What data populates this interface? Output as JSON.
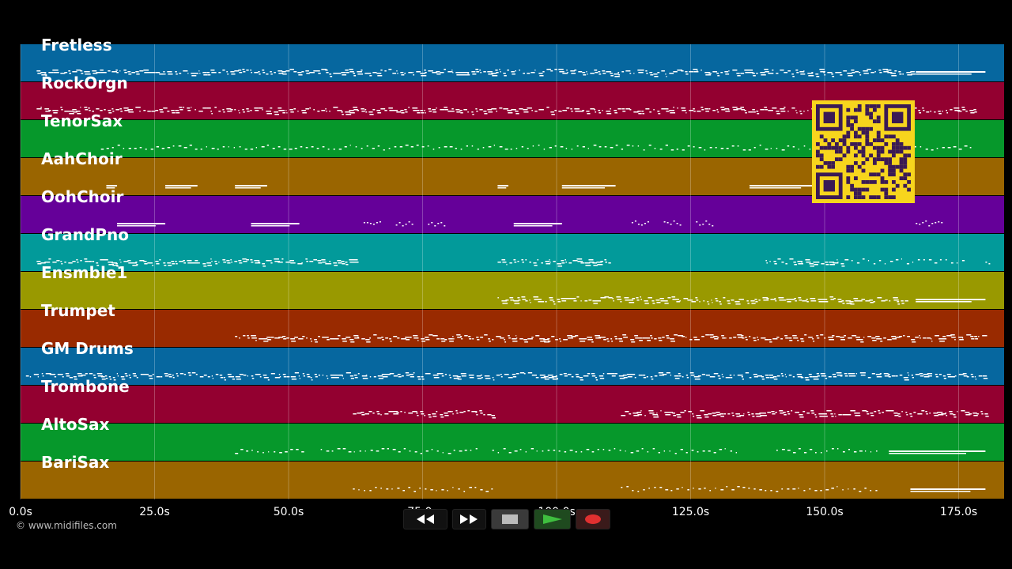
{
  "colors": {
    "background": "#000000",
    "note": "#ffffff",
    "grid": "#ffffff",
    "qr_bg": "#f7d51d",
    "qr_fg": "#3a1a55"
  },
  "tracks": [
    {
      "name": "Fretless",
      "color": "#06679f"
    },
    {
      "name": "RockOrgn",
      "color": "#930030"
    },
    {
      "name": "TenorSax",
      "color": "#06982b"
    },
    {
      "name": "AahChoir",
      "color": "#9a6500"
    },
    {
      "name": "OohChoir",
      "color": "#650099"
    },
    {
      "name": "GrandPno",
      "color": "#029a9a"
    },
    {
      "name": "Ensmble1",
      "color": "#999900"
    },
    {
      "name": "Trumpet",
      "color": "#992a00"
    },
    {
      "name": "GM Drums",
      "color": "#06679f"
    },
    {
      "name": "Trombone",
      "color": "#930030"
    },
    {
      "name": "AltoSax",
      "color": "#06982b"
    },
    {
      "name": "BariSax",
      "color": "#9a6500"
    }
  ],
  "time_axis": {
    "max_seconds": 183,
    "ticks": [
      {
        "value": 0,
        "label": "0.0s"
      },
      {
        "value": 25,
        "label": "25.0s"
      },
      {
        "value": 50,
        "label": "50.0s"
      },
      {
        "value": 75,
        "label": "75.0s"
      },
      {
        "value": 100,
        "label": "100.0s"
      },
      {
        "value": 125,
        "label": "125.0s"
      },
      {
        "value": 150,
        "label": "150.0s"
      },
      {
        "value": 175,
        "label": "175.0s"
      }
    ]
  },
  "note_regions": [
    {
      "track": 0,
      "segments": [
        [
          3,
          166,
          "dense"
        ],
        [
          167,
          180,
          "long"
        ]
      ]
    },
    {
      "track": 1,
      "segments": [
        [
          3,
          178,
          "dense"
        ]
      ]
    },
    {
      "track": 2,
      "segments": [
        [
          15,
          178,
          "sparse"
        ]
      ]
    },
    {
      "track": 3,
      "segments": [
        [
          16,
          18,
          "long"
        ],
        [
          27,
          33,
          "long"
        ],
        [
          40,
          46,
          "long"
        ],
        [
          89,
          91,
          "long"
        ],
        [
          101,
          111,
          "long"
        ],
        [
          136,
          148,
          "long"
        ]
      ]
    },
    {
      "track": 4,
      "segments": [
        [
          18,
          27,
          "long"
        ],
        [
          43,
          52,
          "long"
        ],
        [
          64,
          67,
          "dots"
        ],
        [
          70,
          73,
          "dots"
        ],
        [
          76,
          79,
          "dots"
        ],
        [
          92,
          101,
          "long"
        ],
        [
          114,
          117,
          "dots"
        ],
        [
          120,
          123,
          "dots"
        ],
        [
          126,
          129,
          "dots"
        ],
        [
          167,
          172,
          "dots"
        ]
      ]
    },
    {
      "track": 5,
      "segments": [
        [
          3,
          62,
          "dense"
        ],
        [
          89,
          110,
          "dense"
        ],
        [
          139,
          154,
          "dense"
        ],
        [
          155,
          176,
          "sparse"
        ],
        [
          180,
          181,
          "dots"
        ]
      ]
    },
    {
      "track": 6,
      "segments": [
        [
          89,
          165,
          "dense"
        ],
        [
          167,
          180,
          "long"
        ]
      ]
    },
    {
      "track": 7,
      "segments": [
        [
          40,
          180,
          "dense"
        ]
      ]
    },
    {
      "track": 8,
      "segments": [
        [
          1,
          180,
          "dense"
        ]
      ]
    },
    {
      "track": 9,
      "segments": [
        [
          62,
          88,
          "dense"
        ],
        [
          112,
          180,
          "dense"
        ]
      ]
    },
    {
      "track": 10,
      "segments": [
        [
          40,
          53,
          "sparse"
        ],
        [
          56,
          85,
          "sparse"
        ],
        [
          88,
          134,
          "sparse"
        ],
        [
          141,
          160,
          "sparse"
        ],
        [
          162,
          180,
          "long"
        ]
      ]
    },
    {
      "track": 11,
      "segments": [
        [
          62,
          88,
          "sparse"
        ],
        [
          112,
          160,
          "sparse"
        ],
        [
          166,
          180,
          "long"
        ]
      ]
    }
  ],
  "transport": {
    "rewind_icon": "rewind-icon",
    "forward_icon": "fast-forward-icon",
    "stop_icon": "stop-icon",
    "play_icon": "play-icon",
    "record_icon": "record-icon"
  },
  "copyright": "© www.midifiles.com"
}
